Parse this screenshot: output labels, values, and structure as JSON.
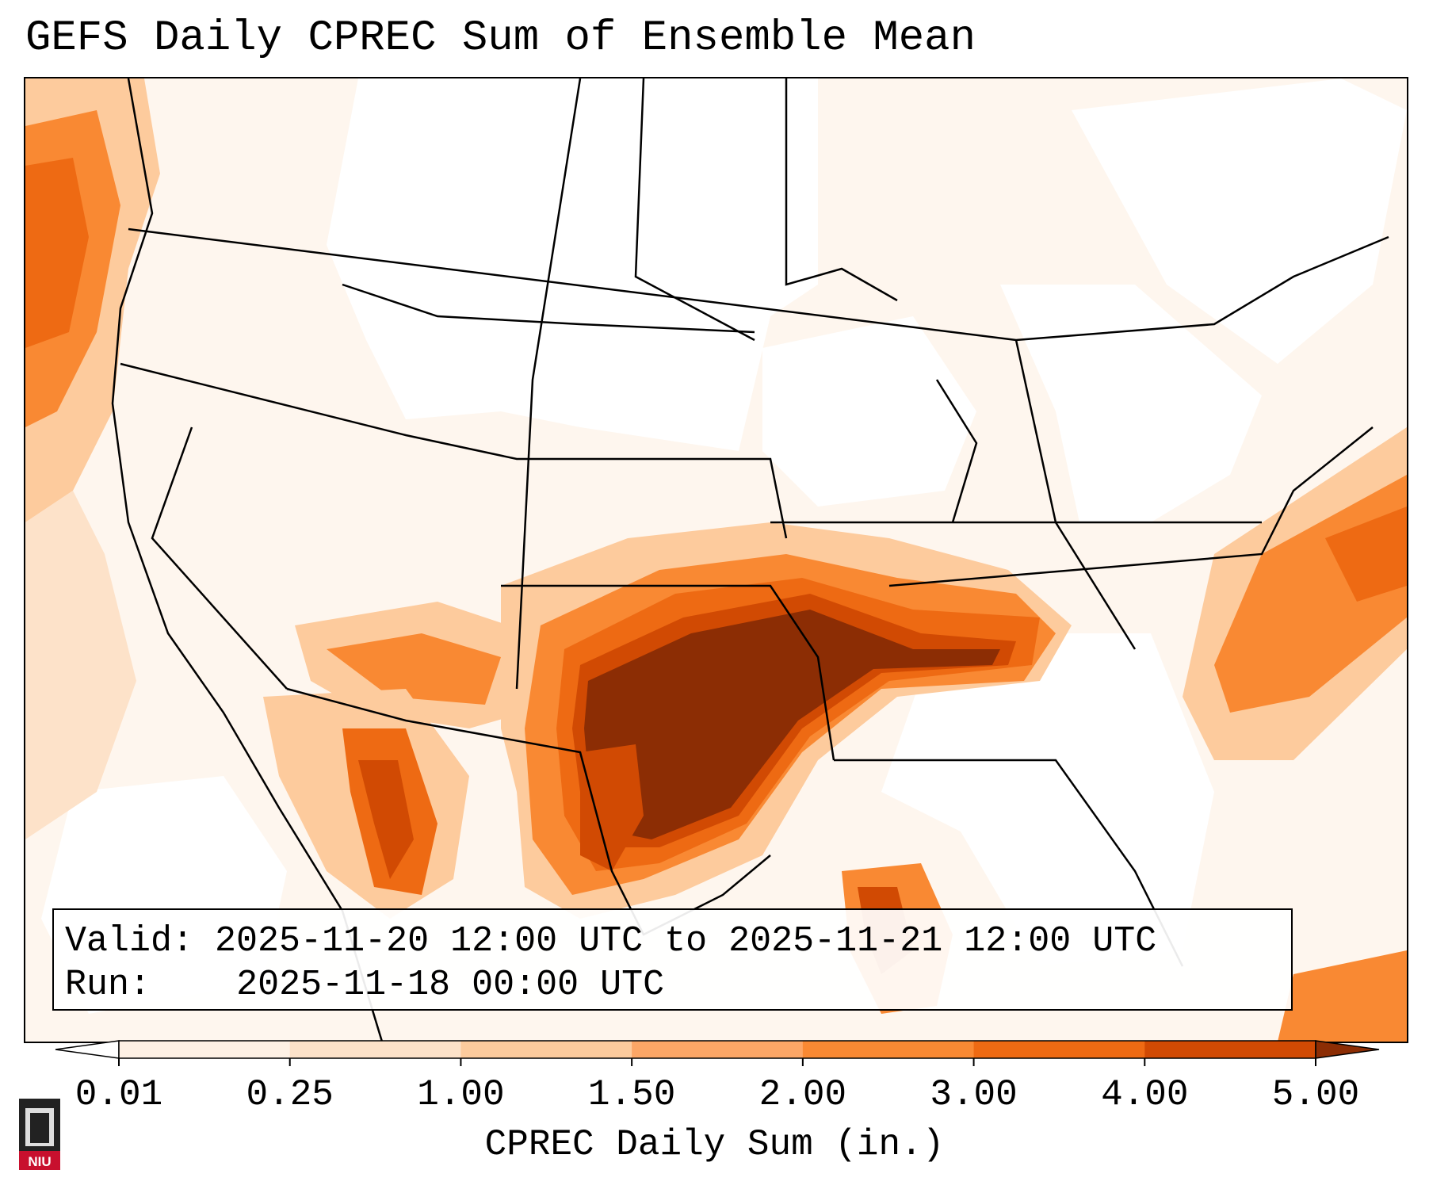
{
  "title": "GEFS Daily CPREC Sum of Ensemble Mean",
  "info": {
    "valid_label": "Valid:",
    "valid_value": "2025-11-20 12:00 UTC to 2025-11-21 12:00 UTC",
    "run_label": "Run:",
    "run_value": "2025-11-18 00:00 UTC"
  },
  "colorbar": {
    "label": "CPREC Daily Sum (in.)",
    "ticks": [
      "0.01",
      "0.25",
      "1.00",
      "1.50",
      "2.00",
      "3.00",
      "4.00",
      "5.00"
    ],
    "colors": [
      "#fef1e5",
      "#fde2c9",
      "#fdcb9d",
      "#fca666",
      "#f98933",
      "#ee6a13",
      "#d14a03",
      "#963104"
    ],
    "under_color": "#ffffff",
    "over_color": "#8c2d04"
  },
  "logo": {
    "text": "NIU",
    "icon": "niu-university-logo"
  }
}
